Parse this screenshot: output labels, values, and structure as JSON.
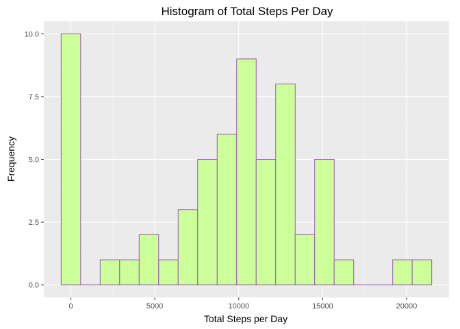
{
  "chart_data": {
    "type": "bar",
    "title": "Histogram of Total Steps Per Day",
    "xlabel": "Total Steps per Day",
    "ylabel": "Frequency",
    "bin_width": 1162,
    "bins": [
      {
        "x_start": -581,
        "x_end": 581,
        "count": 10
      },
      {
        "x_start": 581,
        "x_end": 1743,
        "count": 0
      },
      {
        "x_start": 1743,
        "x_end": 2905,
        "count": 1
      },
      {
        "x_start": 2905,
        "x_end": 4067,
        "count": 1
      },
      {
        "x_start": 4067,
        "x_end": 5229,
        "count": 2
      },
      {
        "x_start": 5229,
        "x_end": 6391,
        "count": 1
      },
      {
        "x_start": 6391,
        "x_end": 7553,
        "count": 3
      },
      {
        "x_start": 7553,
        "x_end": 8715,
        "count": 5
      },
      {
        "x_start": 8715,
        "x_end": 9877,
        "count": 6
      },
      {
        "x_start": 9877,
        "x_end": 11039,
        "count": 9
      },
      {
        "x_start": 11039,
        "x_end": 12201,
        "count": 5
      },
      {
        "x_start": 12201,
        "x_end": 13363,
        "count": 8
      },
      {
        "x_start": 13363,
        "x_end": 14525,
        "count": 2
      },
      {
        "x_start": 14525,
        "x_end": 15687,
        "count": 5
      },
      {
        "x_start": 15687,
        "x_end": 16849,
        "count": 1
      },
      {
        "x_start": 16849,
        "x_end": 18011,
        "count": 0
      },
      {
        "x_start": 18011,
        "x_end": 19173,
        "count": 0
      },
      {
        "x_start": 19173,
        "x_end": 20335,
        "count": 1
      },
      {
        "x_start": 20335,
        "x_end": 21497,
        "count": 1
      }
    ],
    "xlim": [
      -1614,
      22530
    ],
    "ylim": [
      -0.5,
      10.5
    ],
    "x_ticks": [
      0,
      5000,
      10000,
      15000,
      20000
    ],
    "x_tick_labels": [
      "0",
      "5000",
      "10000",
      "15000",
      "20000"
    ],
    "y_ticks": [
      0,
      2.5,
      5,
      7.5,
      10
    ],
    "y_tick_labels": [
      "0.0",
      "2.5",
      "5.0",
      "7.5",
      "10.0"
    ],
    "grid": true,
    "colors": {
      "panel": "#EBEBEB",
      "grid_major": "#FFFFFF",
      "grid_minor": "#F2F2F2",
      "bar_fill": "#CCFF99",
      "bar_stroke": "#9B59B6",
      "tick": "#333333"
    }
  }
}
